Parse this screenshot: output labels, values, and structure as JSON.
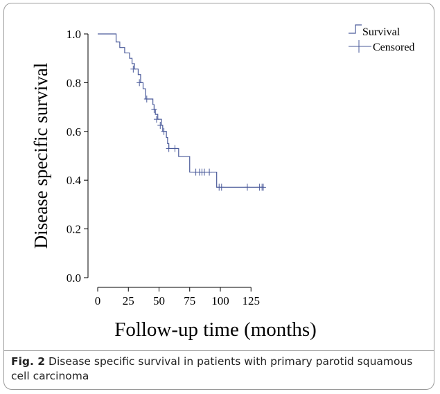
{
  "chart_data": {
    "type": "line",
    "title": "",
    "xlabel": "Follow-up time (months)",
    "ylabel": "Disease specific survival",
    "xlim": [
      0,
      137
    ],
    "ylim": [
      0,
      1.0
    ],
    "x_ticks": [
      0,
      25,
      50,
      75,
      100,
      125
    ],
    "y_ticks": [
      0.0,
      0.2,
      0.4,
      0.6,
      0.8,
      1.0
    ],
    "x_tick_labels": [
      "0",
      "25",
      "50",
      "75",
      "100",
      "125"
    ],
    "y_tick_labels": [
      "0.0",
      "0.2",
      "0.4",
      "0.6",
      "0.8",
      "1.0"
    ],
    "grid": false,
    "legend_position": "top-right, outside plot",
    "series": [
      {
        "name": "Survival",
        "color": "#4a5a9a",
        "step": true,
        "x": [
          0,
          15,
          18,
          22,
          26,
          28,
          30,
          33,
          35,
          37,
          39,
          45,
          46,
          47,
          49,
          52,
          53,
          56,
          57,
          58,
          66,
          75,
          97,
          135
        ],
        "y": [
          1.0,
          0.967,
          0.944,
          0.922,
          0.9,
          0.878,
          0.856,
          0.833,
          0.8,
          0.775,
          0.733,
          0.71,
          0.69,
          0.67,
          0.65,
          0.625,
          0.6,
          0.575,
          0.55,
          0.53,
          0.497,
          0.433,
          0.371,
          0.371
        ]
      },
      {
        "name": "Censored",
        "color": "#4a5a9a",
        "marker": "+",
        "x": [
          29,
          34,
          40,
          46,
          48,
          51,
          54,
          58,
          63,
          80,
          83,
          85,
          87,
          91,
          99,
          101,
          122,
          132,
          134,
          135
        ],
        "y": [
          0.856,
          0.8,
          0.733,
          0.69,
          0.65,
          0.625,
          0.6,
          0.53,
          0.53,
          0.433,
          0.433,
          0.433,
          0.433,
          0.433,
          0.371,
          0.371,
          0.371,
          0.371,
          0.371,
          0.371
        ]
      }
    ]
  },
  "caption": {
    "label": "Fig. 2",
    "text": " Disease specific survival in patients with primary parotid squamous cell carcinoma"
  }
}
